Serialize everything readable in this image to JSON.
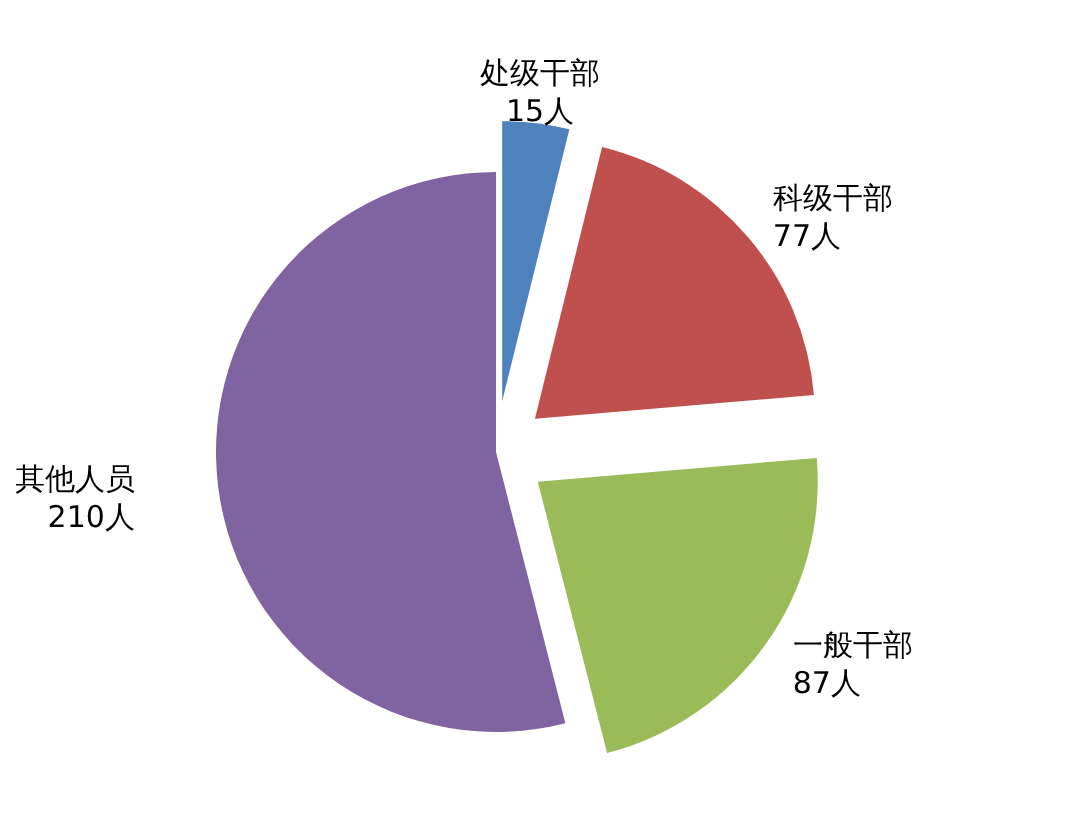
{
  "chart_data": {
    "type": "pie",
    "categories": [
      "处级干部",
      "科级干部",
      "一般干部",
      "其他人员"
    ],
    "values": [
      15,
      77,
      87,
      210
    ],
    "colors": [
      "#4f81bd",
      "#c0504d",
      "#9bbb59",
      "#8064a2"
    ],
    "value_labels": [
      "15人",
      "77人",
      "87人",
      "210人"
    ],
    "legend": false
  }
}
